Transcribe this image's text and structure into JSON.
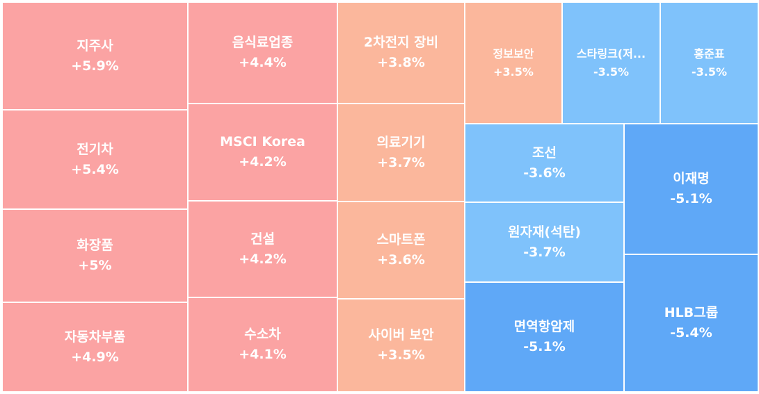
{
  "chart_data": {
    "type": "treemap",
    "colors": {
      "up_strong": "#FBA3A3",
      "up_mild": "#FBB79C",
      "down_mild": "#7FC2FB",
      "down_strong": "#5FA8F7"
    },
    "columns": [
      {
        "items": [
          {
            "name": "지주사",
            "label": "지주사",
            "value": 5.9,
            "value_label": "+5.9%",
            "color_key": "up_strong"
          },
          {
            "name": "전기차",
            "label": "전기차",
            "value": 5.4,
            "value_label": "+5.4%",
            "color_key": "up_strong"
          },
          {
            "name": "화장품",
            "label": "화장품",
            "value": 5.0,
            "value_label": "+5%",
            "color_key": "up_strong"
          },
          {
            "name": "자동차부품",
            "label": "자동차부품",
            "value": 4.9,
            "value_label": "+4.9%",
            "color_key": "up_strong"
          }
        ]
      },
      {
        "items": [
          {
            "name": "음식료업종",
            "label": "음식료업종",
            "value": 4.4,
            "value_label": "+4.4%",
            "color_key": "up_strong"
          },
          {
            "name": "MSCI Korea",
            "label": "MSCI Korea",
            "value": 4.2,
            "value_label": "+4.2%",
            "color_key": "up_strong"
          },
          {
            "name": "건설",
            "label": "건설",
            "value": 4.2,
            "value_label": "+4.2%",
            "color_key": "up_strong"
          },
          {
            "name": "수소차",
            "label": "수소차",
            "value": 4.1,
            "value_label": "+4.1%",
            "color_key": "up_strong"
          }
        ]
      },
      {
        "items": [
          {
            "name": "2차전지 장비",
            "label": "2차전지 장비",
            "value": 3.8,
            "value_label": "+3.8%",
            "color_key": "up_mild"
          },
          {
            "name": "의료기기",
            "label": "의료기기",
            "value": 3.7,
            "value_label": "+3.7%",
            "color_key": "up_mild"
          },
          {
            "name": "스마트폰",
            "label": "스마트폰",
            "value": 3.6,
            "value_label": "+3.6%",
            "color_key": "up_mild"
          },
          {
            "name": "사이버 보안",
            "label": "사이버 보안",
            "value": 3.5,
            "value_label": "+3.5%",
            "color_key": "up_mild"
          }
        ]
      },
      {
        "rows": [
          {
            "items": [
              {
                "name": "정보보안",
                "label": "정보보안",
                "value": 3.5,
                "value_label": "+3.5%",
                "color_key": "up_mild"
              },
              {
                "name": "스타링크(저궤도위성)",
                "label": "스타링크(저...",
                "value": -3.5,
                "value_label": "-3.5%",
                "color_key": "down_mild"
              },
              {
                "name": "홍준표",
                "label": "홍준표",
                "value": -3.5,
                "value_label": "-3.5%",
                "color_key": "down_mild"
              }
            ]
          },
          {
            "columns": [
              {
                "items": [
                  {
                    "name": "조선",
                    "label": "조선",
                    "value": -3.6,
                    "value_label": "-3.6%",
                    "color_key": "down_mild"
                  },
                  {
                    "name": "원자재(석탄)",
                    "label": "원자재(석탄)",
                    "value": -3.7,
                    "value_label": "-3.7%",
                    "color_key": "down_mild"
                  },
                  {
                    "name": "면역항암제",
                    "label": "면역항암제",
                    "value": -5.1,
                    "value_label": "-5.1%",
                    "color_key": "down_strong"
                  }
                ]
              },
              {
                "items": [
                  {
                    "name": "이재명",
                    "label": "이재명",
                    "value": -5.1,
                    "value_label": "-5.1%",
                    "color_key": "down_strong"
                  },
                  {
                    "name": "HLB그룹",
                    "label": "HLB그룹",
                    "value": -5.4,
                    "value_label": "-5.4%",
                    "color_key": "down_strong"
                  }
                ]
              }
            ]
          }
        ]
      }
    ]
  }
}
